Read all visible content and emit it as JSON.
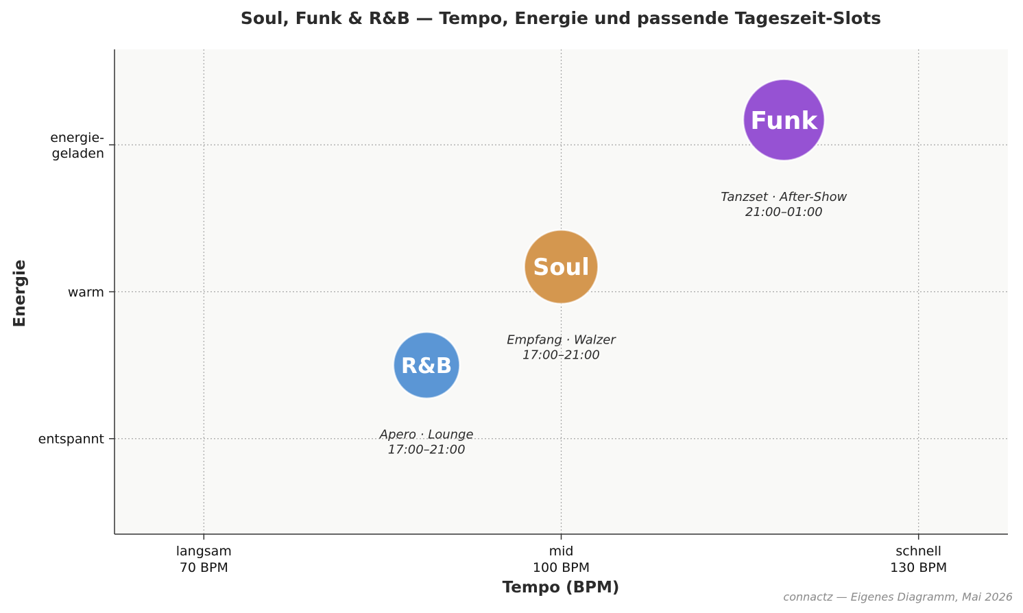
{
  "chart_data": {
    "type": "scatter",
    "title": "Soul, Funk & R&B — Tempo, Energie und passende Tageszeit-Slots",
    "xlabel": "Tempo  (BPM)",
    "ylabel": "Energie",
    "xlim": [
      62.5,
      137.5
    ],
    "ylim": [
      0.35,
      3.65
    ],
    "grid": true,
    "x_ticks": [
      {
        "value": 70,
        "line1": "langsam",
        "line2": "70 BPM"
      },
      {
        "value": 100,
        "line1": "mid",
        "line2": "100 BPM"
      },
      {
        "value": 130,
        "line1": "schnell",
        "line2": "130 BPM"
      }
    ],
    "y_ticks": [
      {
        "value": 1,
        "lines": [
          "entspannt"
        ]
      },
      {
        "value": 2,
        "lines": [
          "warm"
        ]
      },
      {
        "value": 3,
        "lines": [
          "energie-",
          "geladen"
        ]
      }
    ],
    "points": [
      {
        "name": "R&B",
        "x": 88.7,
        "y": 1.5,
        "size": 1,
        "color": "#5b96d5",
        "annotation": [
          "Apero · Lounge",
          "17:00–21:00"
        ]
      },
      {
        "name": "Soul",
        "x": 100,
        "y": 2.17,
        "size": 2,
        "color": "#d4974f",
        "annotation": [
          "Empfang · Walzer",
          "17:00–21:00"
        ]
      },
      {
        "name": "Funk",
        "x": 118.7,
        "y": 3.17,
        "size": 3,
        "color": "#9652d3",
        "annotation": [
          "Tanzset · After-Show",
          "21:00–01:00"
        ]
      }
    ]
  },
  "credit": "connactz — Eigenes Diagramm, Mai 2026"
}
